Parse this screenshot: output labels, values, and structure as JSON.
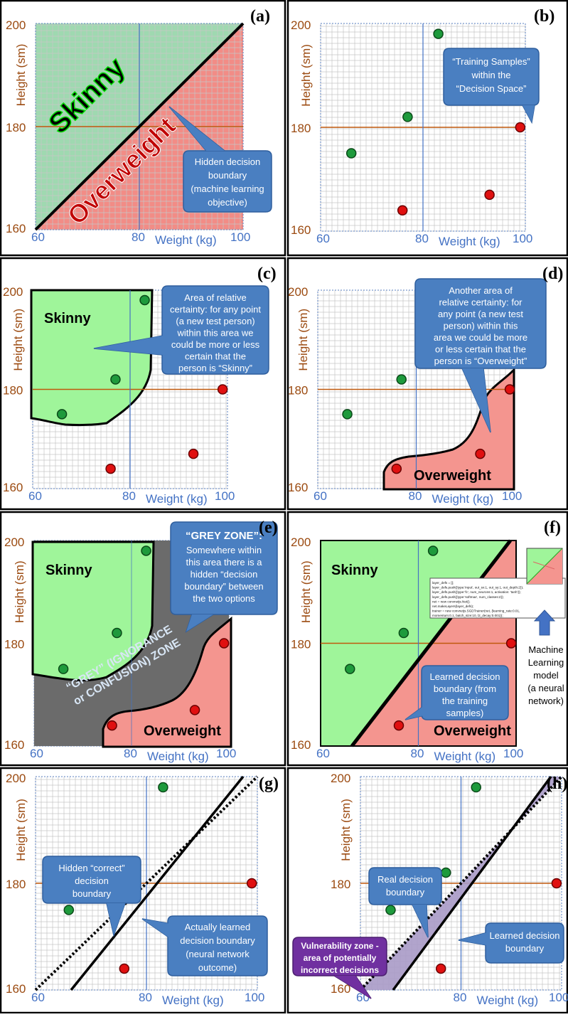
{
  "colors": {
    "green_fill": "#9ff59a",
    "green_pale": "#9fd9b0",
    "red_fill": "#f4958f",
    "red_pale": "#f28c86",
    "grid": "#c6c6c6",
    "axis_h": "#c0590d",
    "axis_v": "#4472c4",
    "label_ytitle": "#9b4a10",
    "label_x": "#4472c4",
    "callout": "#4a7fc1",
    "callout_border": "#2f5f9e",
    "grey_zone": "#6b6b6b",
    "vuln_callout": "#7030a0",
    "vuln_zone": "#a89ac7",
    "dot_green": "#1e9a3c",
    "dot_red": "#e01010"
  },
  "icons": [
    "arrow-up-icon"
  ],
  "axes": {
    "y_title": "Height (sm)",
    "y_top": "200",
    "y_mid": "180",
    "y_bottom": "160",
    "x_left": "60",
    "x_mid": "80",
    "x_title": "Weight (kg)",
    "x_right": "100"
  },
  "panels": [
    {
      "id": "a",
      "tag": "(a)",
      "region_labels": [
        "Skinny",
        "Overweight"
      ],
      "callout": [
        "Hidden decision",
        "boundary",
        "(machine learning",
        "objective)"
      ]
    },
    {
      "id": "b",
      "tag": "(b)",
      "callout": [
        "“Training Samples”",
        "within the",
        "“Decision Space”"
      ]
    },
    {
      "id": "c",
      "tag": "(c)",
      "region_labels": [
        "Skinny"
      ],
      "callout": [
        "Area of relative",
        "certainty: for any point",
        "(a new test person)",
        "within this area we",
        "could be more or less",
        "certain that the",
        "person is “Skinny”"
      ]
    },
    {
      "id": "d",
      "tag": "(d)",
      "region_labels": [
        "Overweight"
      ],
      "callout": [
        "Another area of",
        "relative certainty: for",
        "any point (a new test",
        "person) within this",
        "area we could be more",
        "or less certain that the",
        "person is “Overweight”"
      ]
    },
    {
      "id": "e",
      "tag": "(e)",
      "region_labels": [
        "Skinny",
        "Overweight"
      ],
      "grey_zone_label": [
        "“GREY” (IGNORANCE",
        "or CONFUSION) ZONE"
      ],
      "callout_title": "“GREY ZONE”:",
      "callout": [
        "Somewhere within",
        "this area there is a",
        "hidden “decision",
        "boundary” between",
        "the two options"
      ]
    },
    {
      "id": "f",
      "tag": "(f)",
      "region_labels": [
        "Skinny",
        "Overweight"
      ],
      "callout": [
        "Learned decision",
        "boundary (from",
        "the training",
        "samples)"
      ],
      "code_lines": [
        "layer_defs = [];",
        "layer_defs.push({type:'input', out_sx:1, out_sy:1, out_depth:2});",
        "layer_defs.push({type:'fc', num_neurons:1, activation: 'tanh'});",
        "layer_defs.push({type:'softmax', num_classes:2});",
        "net = new convnetjs.Net();",
        "net.makeLayers(layer_defs);",
        "trainer = new convnetjs.SGDTrainer(net, {learning_rate:0.01,",
        "            momentum:0.1, batch_size:10, l2_decay:0.001});"
      ],
      "model_label": [
        "Machine",
        "Learning",
        "model",
        "(a neural",
        "network)"
      ]
    },
    {
      "id": "g",
      "tag": "(g)",
      "callout_hidden": [
        "Hidden “correct”",
        "decision",
        "boundary"
      ],
      "callout_learned": [
        "Actually learned",
        "decision boundary",
        "(neural network",
        "outcome)"
      ]
    },
    {
      "id": "h",
      "tag": "(h)",
      "callout_real": [
        "Real decision",
        "boundary"
      ],
      "callout_learned": [
        "Learned decision",
        "boundary"
      ],
      "callout_vuln": [
        "Vulnerability zone -",
        "area of potentially",
        "incorrect decisions"
      ]
    }
  ],
  "samples": {
    "green": [
      [
        66,
        175
      ],
      [
        77,
        182
      ],
      [
        83,
        198
      ]
    ],
    "red": [
      [
        76,
        164
      ],
      [
        93,
        167
      ],
      [
        99,
        180
      ]
    ]
  }
}
